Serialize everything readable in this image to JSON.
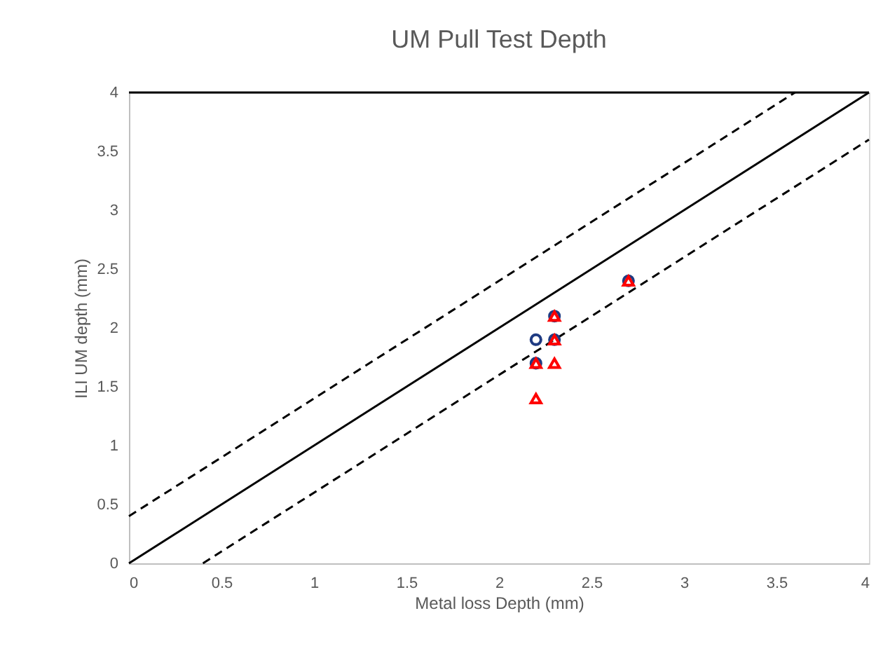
{
  "chart_data": {
    "type": "scatter",
    "title": "UM Pull Test Depth",
    "xlabel": "Metal loss Depth (mm)",
    "ylabel": "ILI UM depth (mm)",
    "xlim": [
      0,
      4
    ],
    "ylim": [
      0,
      4
    ],
    "xticks": [
      0,
      0.5,
      1,
      1.5,
      2,
      2.5,
      3,
      3.5,
      4
    ],
    "yticks": [
      0,
      0.5,
      1,
      1.5,
      2,
      2.5,
      3,
      3.5,
      4
    ],
    "grid": false,
    "series": [
      {
        "type": "line",
        "color": "#000000",
        "line_style": "solid",
        "x": [
          0,
          4
        ],
        "values": [
          0,
          4
        ]
      },
      {
        "type": "line",
        "color": "#000000",
        "line_style": "dashed",
        "x": [
          0,
          3.6
        ],
        "values": [
          0.4,
          4
        ]
      },
      {
        "type": "line",
        "color": "#000000",
        "line_style": "dashed",
        "x": [
          0.4,
          4
        ],
        "values": [
          0,
          3.6
        ]
      },
      {
        "type": "line",
        "color": "#000000",
        "line_style": "solid",
        "x": [
          0,
          4
        ],
        "values": [
          4,
          4
        ]
      },
      {
        "color": "#1f3b82",
        "marker": "circle",
        "x": [
          2.2,
          2.2,
          2.3,
          2.3,
          2.7
        ],
        "values": [
          1.9,
          1.7,
          2.1,
          1.9,
          2.4
        ]
      },
      {
        "color": "#ff0000",
        "marker": "triangle",
        "x": [
          2.2,
          2.2,
          2.3,
          2.3,
          2.3,
          2.7
        ],
        "values": [
          1.7,
          1.4,
          2.1,
          1.9,
          1.7,
          2.4
        ]
      }
    ]
  }
}
